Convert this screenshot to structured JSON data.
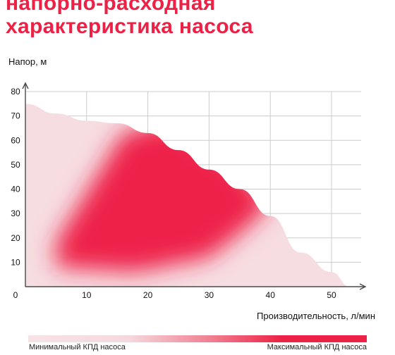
{
  "title": {
    "line1": "напорно-расходная",
    "line2": "характеристика насоса"
  },
  "colors": {
    "accent": "#ec2145",
    "curve_light": "#f6dde1",
    "efficiency_max": "#ee2249",
    "axis": "#4a4a4a",
    "grid": "#cccccc"
  },
  "chart_data": {
    "type": "area",
    "title": "напорно-расходная характеристика насоса",
    "xlabel": "Производительность, л/мин",
    "ylabel": "Напор, м",
    "xlim": [
      0,
      55
    ],
    "ylim": [
      0,
      80
    ],
    "xticks": [
      10,
      20,
      30,
      40,
      50
    ],
    "yticks": [
      10,
      20,
      30,
      40,
      50,
      60,
      70,
      80
    ],
    "origin_label": "0",
    "grid": true,
    "curve": {
      "x": [
        0,
        5,
        10,
        15,
        20,
        25,
        30,
        35,
        40,
        45,
        50,
        53
      ],
      "y": [
        75,
        71,
        68,
        67,
        63,
        56,
        48,
        40,
        29,
        14,
        6,
        0
      ]
    },
    "efficiency_zone": {
      "x_range": [
        3,
        40
      ],
      "y_range": [
        8,
        65
      ],
      "description_min": "Минимальный КПД насоса",
      "description_max": "Максимальный КПД насоса"
    }
  },
  "legend": {
    "min_label": "Минимальный КПД насоса",
    "max_label": "Максимальный КПД насоса"
  }
}
